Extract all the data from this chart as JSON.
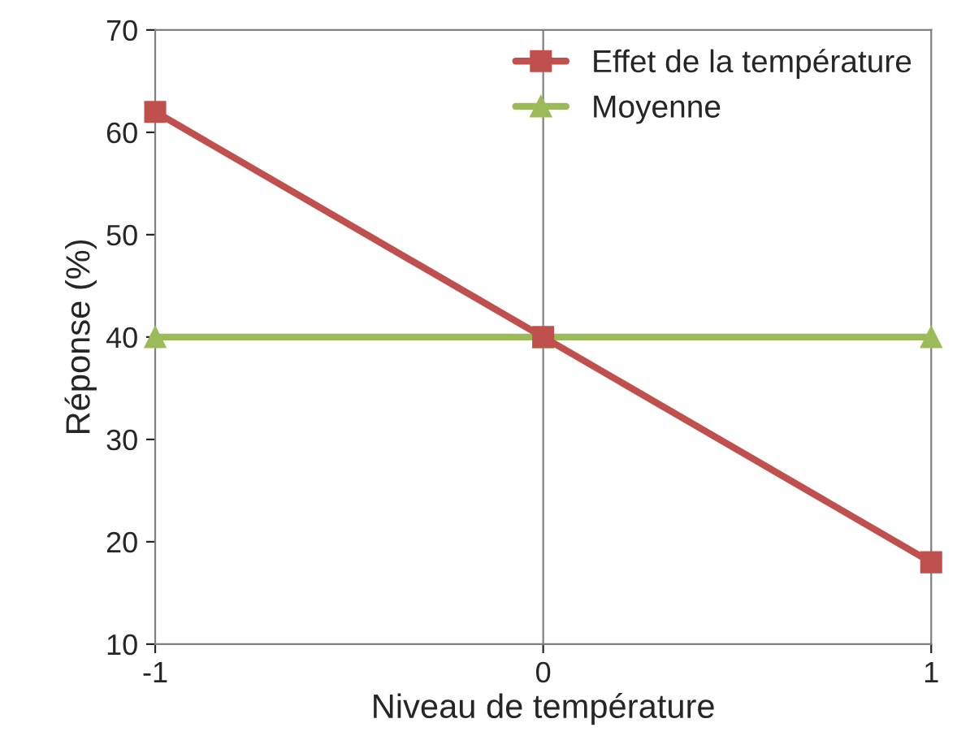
{
  "chart_data": {
    "type": "line",
    "xlabel": "Niveau de température",
    "ylabel": "Réponse (%)",
    "x": [
      -1,
      0,
      1
    ],
    "series": [
      {
        "name": "Effet de la température",
        "color": "#c0504d",
        "marker": "square",
        "values": [
          62,
          40,
          18
        ]
      },
      {
        "name": "Moyenne",
        "color": "#9bbb59",
        "marker": "triangle",
        "values": [
          40,
          40,
          40
        ]
      }
    ],
    "xlim": [
      -1,
      1
    ],
    "xticks": [
      -1,
      0,
      1
    ],
    "ylim": [
      10,
      70
    ],
    "yticks": [
      10,
      20,
      30,
      40,
      50,
      60,
      70
    ],
    "ref_lines": [
      {
        "axis": "x",
        "value": 0,
        "color": "#808080"
      }
    ],
    "grid": false,
    "legend": "top right"
  }
}
